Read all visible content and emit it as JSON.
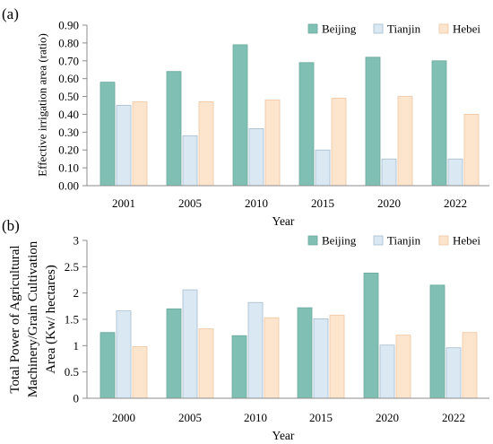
{
  "figure": {
    "background": "#ffffff",
    "axis_color": "#8c8c8c"
  },
  "chart_data": [
    {
      "panel_label": "(a)",
      "type": "bar",
      "categories": [
        "2001",
        "2005",
        "2010",
        "2015",
        "2020",
        "2022"
      ],
      "series": [
        {
          "name": "Beijing",
          "color": "#80bfb3",
          "edge_color": "#6aa99e",
          "values": [
            0.58,
            0.64,
            0.79,
            0.69,
            0.72,
            0.7
          ]
        },
        {
          "name": "Tianjin",
          "color": "#d9e8f3",
          "edge_color": "#a7bccd",
          "values": [
            0.45,
            0.28,
            0.32,
            0.2,
            0.15,
            0.15
          ]
        },
        {
          "name": "Hebei",
          "color": "#fde4cc",
          "edge_color": "#eec6a2",
          "values": [
            0.47,
            0.47,
            0.48,
            0.49,
            0.5,
            0.4
          ]
        }
      ],
      "xlabel": "Year",
      "ylabel": "Effective irrigation area (ratio)",
      "ylim": [
        0,
        0.9
      ],
      "yticks": [
        "0.00",
        "0.10",
        "0.20",
        "0.30",
        "0.40",
        "0.50",
        "0.60",
        "0.70",
        "0.80",
        "0.90"
      ],
      "legend": "top-right",
      "grid": false
    },
    {
      "panel_label": "(b)",
      "type": "bar",
      "categories": [
        "2000",
        "2005",
        "2010",
        "2015",
        "2020",
        "2022"
      ],
      "series": [
        {
          "name": "Beijing",
          "color": "#80bfb3",
          "edge_color": "#6aa99e",
          "values": [
            1.25,
            1.7,
            1.19,
            1.72,
            2.38,
            2.15
          ]
        },
        {
          "name": "Tianjin",
          "color": "#d9e8f3",
          "edge_color": "#a7bccd",
          "values": [
            1.66,
            2.06,
            1.82,
            1.51,
            1.01,
            0.96
          ]
        },
        {
          "name": "Hebei",
          "color": "#fde4cc",
          "edge_color": "#eec6a2",
          "values": [
            0.98,
            1.32,
            1.53,
            1.58,
            1.2,
            1.25
          ]
        }
      ],
      "xlabel": "Year",
      "ylabel": [
        "Total Power of Agricultural",
        "Machinery/Grain Cultivation",
        "Area (Kw/ hectares)"
      ],
      "ylim": [
        0,
        3
      ],
      "yticks": [
        "0",
        "0.5",
        "1",
        "1.5",
        "2",
        "2.5",
        "3"
      ],
      "legend": "top-right",
      "grid": false
    }
  ]
}
